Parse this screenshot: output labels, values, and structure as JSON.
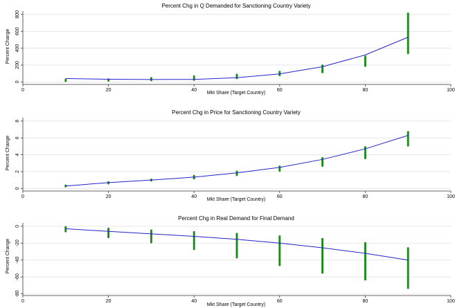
{
  "colors": {
    "points": "#1a8a1a",
    "line": "#2222cc",
    "grid": "#dddddd",
    "axis": "#333333"
  },
  "chart_data": [
    {
      "type": "scatter",
      "title": "Percent Chg in Q Demanded for Sanctioning Country Variety",
      "xlabel": "Mkt Share (Target Country)",
      "ylabel": "Percent Change",
      "xlim": [
        0,
        100
      ],
      "ylim": [
        -30,
        840
      ],
      "xticks": [
        0,
        20,
        40,
        60,
        80,
        100
      ],
      "yticks": [
        0,
        200,
        400,
        600,
        800
      ],
      "grid": true,
      "points": [
        {
          "x": 10,
          "y_min": 10,
          "y_max": 25
        },
        {
          "x": 20,
          "y_min": 15,
          "y_max": 30
        },
        {
          "x": 30,
          "y_min": 20,
          "y_max": 45
        },
        {
          "x": 40,
          "y_min": 25,
          "y_max": 65
        },
        {
          "x": 50,
          "y_min": 45,
          "y_max": 85
        },
        {
          "x": 60,
          "y_min": 80,
          "y_max": 120
        },
        {
          "x": 70,
          "y_min": 115,
          "y_max": 195
        },
        {
          "x": 80,
          "y_min": 190,
          "y_max": 300
        },
        {
          "x": 90,
          "y_min": 340,
          "y_max": 810
        }
      ],
      "fit": {
        "x": [
          10,
          20,
          30,
          40,
          50,
          60,
          70,
          80,
          90
        ],
        "y": [
          40,
          32,
          28,
          30,
          50,
          95,
          180,
          320,
          530
        ]
      }
    },
    {
      "type": "scatter",
      "title": "Percent Chg in Price for Sanctioning Country Variety",
      "xlabel": "Mkt Share (Target Country)",
      "ylabel": "Percent Change",
      "xlim": [
        0,
        100
      ],
      "ylim": [
        -0.3,
        8.4
      ],
      "xticks": [
        0,
        20,
        40,
        60,
        80,
        100
      ],
      "yticks": [
        0,
        2,
        4,
        6,
        8
      ],
      "grid": true,
      "points": [
        {
          "x": 10,
          "y_min": 0.25,
          "y_max": 0.35
        },
        {
          "x": 20,
          "y_min": 0.6,
          "y_max": 0.75
        },
        {
          "x": 30,
          "y_min": 0.95,
          "y_max": 1.05
        },
        {
          "x": 40,
          "y_min": 1.2,
          "y_max": 1.5
        },
        {
          "x": 50,
          "y_min": 1.6,
          "y_max": 2.0
        },
        {
          "x": 60,
          "y_min": 2.1,
          "y_max": 2.6
        },
        {
          "x": 70,
          "y_min": 2.7,
          "y_max": 3.6
        },
        {
          "x": 80,
          "y_min": 3.6,
          "y_max": 4.9
        },
        {
          "x": 90,
          "y_min": 5.1,
          "y_max": 6.7
        }
      ],
      "fit": {
        "x": [
          10,
          20,
          30,
          40,
          50,
          60,
          70,
          80,
          90
        ],
        "y": [
          0.3,
          0.7,
          1.0,
          1.35,
          1.85,
          2.5,
          3.45,
          4.7,
          6.3
        ]
      }
    },
    {
      "type": "scatter",
      "title": "Percent Chg in Real Demand for Final Demand",
      "xlabel": "Mkt Share (Target Country)",
      "ylabel": "Percent Change",
      "xlim": [
        0,
        100
      ],
      "ylim": [
        -82,
        4
      ],
      "xticks": [
        0,
        20,
        40,
        60,
        80,
        100
      ],
      "yticks": [
        0,
        -20,
        -40,
        -60,
        -80
      ],
      "grid": true,
      "points": [
        {
          "x": 10,
          "y_min": -6,
          "y_max": -1
        },
        {
          "x": 20,
          "y_min": -13,
          "y_max": -3
        },
        {
          "x": 30,
          "y_min": -19,
          "y_max": -5
        },
        {
          "x": 40,
          "y_min": -27,
          "y_max": -7
        },
        {
          "x": 50,
          "y_min": -37,
          "y_max": -9
        },
        {
          "x": 60,
          "y_min": -46,
          "y_max": -12
        },
        {
          "x": 70,
          "y_min": -55,
          "y_max": -15
        },
        {
          "x": 80,
          "y_min": -63,
          "y_max": -20
        },
        {
          "x": 90,
          "y_min": -73,
          "y_max": -26
        }
      ],
      "fit": {
        "x": [
          10,
          20,
          30,
          40,
          50,
          60,
          70,
          80,
          90
        ],
        "y": [
          -3,
          -6,
          -9,
          -12,
          -15.5,
          -20,
          -25.5,
          -32,
          -40
        ]
      }
    }
  ]
}
